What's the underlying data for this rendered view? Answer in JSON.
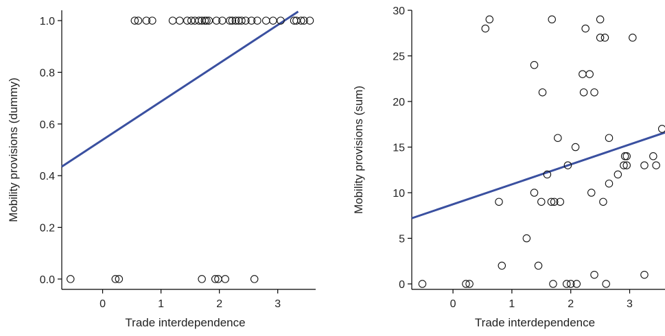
{
  "chart_data": [
    {
      "type": "scatter",
      "xlabel": "Trade interdependence",
      "ylabel": "Mobility provisions (dummy)",
      "xlim": [
        -0.7,
        3.65
      ],
      "ylim": [
        -0.04,
        1.04
      ],
      "xticks": [
        0,
        1,
        2,
        3
      ],
      "xtick_labels": [
        "0",
        "1",
        "2",
        "3"
      ],
      "yticks": [
        0.0,
        0.2,
        0.4,
        0.6,
        0.8,
        1.0
      ],
      "ytick_labels": [
        "0.0",
        "0.2",
        "0.4",
        "0.6",
        "0.8",
        "1.0"
      ],
      "grid": false,
      "point_color": "#111111",
      "fit_color": "#3a50a0",
      "points": [
        [
          -0.55,
          0
        ],
        [
          0.22,
          0
        ],
        [
          0.28,
          0
        ],
        [
          1.7,
          0
        ],
        [
          1.93,
          0
        ],
        [
          1.98,
          0
        ],
        [
          2.1,
          0
        ],
        [
          2.6,
          0
        ],
        [
          0.55,
          1
        ],
        [
          0.61,
          1
        ],
        [
          0.75,
          1
        ],
        [
          0.85,
          1
        ],
        [
          1.2,
          1
        ],
        [
          1.32,
          1
        ],
        [
          1.45,
          1
        ],
        [
          1.52,
          1
        ],
        [
          1.58,
          1
        ],
        [
          1.65,
          1
        ],
        [
          1.7,
          1
        ],
        [
          1.75,
          1
        ],
        [
          1.78,
          1
        ],
        [
          1.82,
          1
        ],
        [
          1.95,
          1
        ],
        [
          2.05,
          1
        ],
        [
          2.18,
          1
        ],
        [
          2.22,
          1
        ],
        [
          2.28,
          1
        ],
        [
          2.33,
          1
        ],
        [
          2.38,
          1
        ],
        [
          2.45,
          1
        ],
        [
          2.55,
          1
        ],
        [
          2.65,
          1
        ],
        [
          2.8,
          1
        ],
        [
          2.92,
          1
        ],
        [
          3.05,
          1
        ],
        [
          3.28,
          1
        ],
        [
          3.32,
          1
        ],
        [
          3.4,
          1
        ],
        [
          3.45,
          1
        ],
        [
          3.55,
          1
        ]
      ],
      "fit": {
        "x": [
          -0.7,
          3.35
        ],
        "y": [
          0.435,
          1.035
        ]
      }
    },
    {
      "type": "scatter",
      "xlabel": "Trade interdependence",
      "ylabel": "Mobility provisions (sum)",
      "xlim": [
        -0.7,
        3.6
      ],
      "ylim": [
        -0.6,
        30.0
      ],
      "xticks": [
        0,
        1,
        2,
        3
      ],
      "xtick_labels": [
        "0",
        "1",
        "2",
        "3"
      ],
      "yticks": [
        0,
        5,
        10,
        15,
        20,
        25,
        30
      ],
      "ytick_labels": [
        "0",
        "5",
        "10",
        "15",
        "20",
        "25",
        "30"
      ],
      "grid": false,
      "point_color": "#111111",
      "fit_color": "#3a50a0",
      "points": [
        [
          -0.52,
          0
        ],
        [
          0.22,
          0
        ],
        [
          0.28,
          0
        ],
        [
          1.7,
          0
        ],
        [
          1.93,
          0
        ],
        [
          2.0,
          0
        ],
        [
          2.1,
          0
        ],
        [
          2.6,
          0
        ],
        [
          2.4,
          1
        ],
        [
          3.25,
          1
        ],
        [
          0.83,
          2
        ],
        [
          1.45,
          2
        ],
        [
          1.25,
          5
        ],
        [
          0.78,
          9
        ],
        [
          1.5,
          9
        ],
        [
          1.67,
          9
        ],
        [
          1.72,
          9
        ],
        [
          1.82,
          9
        ],
        [
          2.55,
          9
        ],
        [
          1.38,
          10
        ],
        [
          2.35,
          10
        ],
        [
          2.65,
          11
        ],
        [
          1.6,
          12
        ],
        [
          2.8,
          12
        ],
        [
          1.95,
          13
        ],
        [
          2.9,
          13
        ],
        [
          2.95,
          13
        ],
        [
          3.25,
          13
        ],
        [
          3.45,
          13
        ],
        [
          2.92,
          14
        ],
        [
          2.95,
          14
        ],
        [
          3.4,
          14
        ],
        [
          2.08,
          15
        ],
        [
          1.78,
          16
        ],
        [
          2.65,
          16
        ],
        [
          3.55,
          17
        ],
        [
          1.52,
          21
        ],
        [
          2.22,
          21
        ],
        [
          2.4,
          21
        ],
        [
          2.2,
          23
        ],
        [
          2.32,
          23
        ],
        [
          1.38,
          24
        ],
        [
          2.5,
          27
        ],
        [
          2.58,
          27
        ],
        [
          3.05,
          27
        ],
        [
          0.55,
          28
        ],
        [
          2.25,
          28
        ],
        [
          0.62,
          29
        ],
        [
          1.68,
          29
        ],
        [
          2.5,
          29
        ]
      ],
      "fit": {
        "x": [
          -0.7,
          3.6
        ],
        "y": [
          7.2,
          16.6
        ]
      }
    }
  ]
}
